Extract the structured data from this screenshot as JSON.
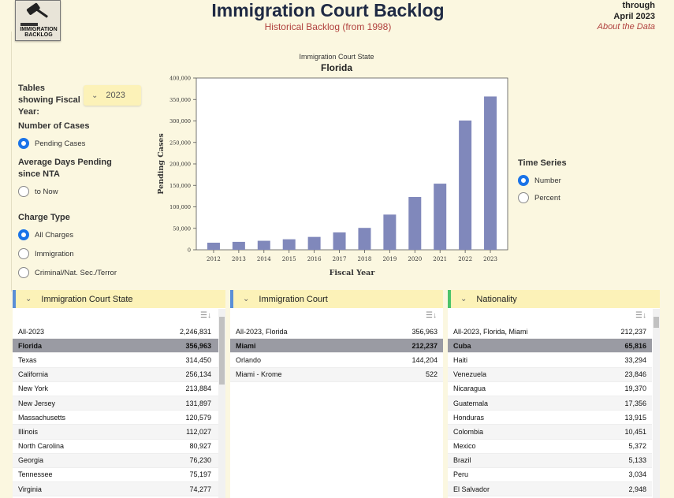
{
  "header": {
    "title": "Immigration Court Backlog",
    "subtitle": "Historical Backlog (from 1998)",
    "through_1": "through",
    "through_2": "April 2023",
    "about": "About the Data",
    "logo_text_1": "IMMIGRATION",
    "logo_text_2": "BACKLOG"
  },
  "controls": {
    "fy_label": "Tables showing Fiscal Year:",
    "fy_value": "2023",
    "num_cases_label": "Number of Cases",
    "pending_label": "Pending Cases",
    "avg_days_label": "Average Days Pending since NTA",
    "to_now_label": "to Now",
    "charge_type_label": "Charge Type",
    "charge_all": "All Charges",
    "charge_imm": "Immigration",
    "charge_crim": "Criminal/Nat. Sec./Terror",
    "time_series_label": "Time Series",
    "ts_number": "Number",
    "ts_percent": "Percent"
  },
  "chart_caption": "Immigration Court State",
  "chart_state": "Florida",
  "chart_data": {
    "type": "bar",
    "categories": [
      "2012",
      "2013",
      "2014",
      "2015",
      "2016",
      "2017",
      "2018",
      "2019",
      "2020",
      "2021",
      "2022",
      "2023"
    ],
    "values": [
      16500,
      18500,
      21000,
      24500,
      30000,
      40500,
      51000,
      82000,
      123000,
      154000,
      301000,
      357000
    ],
    "xlabel": "Fiscal Year",
    "ylabel": "Pending Cases",
    "ylim": [
      0,
      400000
    ],
    "yticks": [
      "0",
      "50,000",
      "100,000",
      "150,000",
      "200,000",
      "250,000",
      "300,000",
      "350,000",
      "400,000"
    ],
    "bar_color": "#8088bb",
    "grid": false
  },
  "panels": {
    "state": {
      "title": "Immigration Court State",
      "rows": [
        {
          "k": "All-2023",
          "v": "2,246,831"
        },
        {
          "k": "Florida",
          "v": "356,963"
        },
        {
          "k": "Texas",
          "v": "314,450"
        },
        {
          "k": "California",
          "v": "256,134"
        },
        {
          "k": "New York",
          "v": "213,884"
        },
        {
          "k": "New Jersey",
          "v": "131,897"
        },
        {
          "k": "Massachusetts",
          "v": "120,579"
        },
        {
          "k": "Illinois",
          "v": "112,027"
        },
        {
          "k": "North Carolina",
          "v": "80,927"
        },
        {
          "k": "Georgia",
          "v": "76,230"
        },
        {
          "k": "Tennessee",
          "v": "75,197"
        },
        {
          "k": "Virginia",
          "v": "74,277"
        }
      ]
    },
    "court": {
      "title": "Immigration Court",
      "rows": [
        {
          "k": "All-2023, Florida",
          "v": "356,963"
        },
        {
          "k": "Miami",
          "v": "212,237"
        },
        {
          "k": "Orlando",
          "v": "144,204"
        },
        {
          "k": "Miami - Krome",
          "v": "522"
        }
      ]
    },
    "nationality": {
      "title": "Nationality",
      "rows": [
        {
          "k": "All-2023, Florida, Miami",
          "v": "212,237"
        },
        {
          "k": "Cuba",
          "v": "65,816"
        },
        {
          "k": "Haiti",
          "v": "33,294"
        },
        {
          "k": "Venezuela",
          "v": "23,846"
        },
        {
          "k": "Nicaragua",
          "v": "19,370"
        },
        {
          "k": "Guatemala",
          "v": "17,356"
        },
        {
          "k": "Honduras",
          "v": "13,915"
        },
        {
          "k": "Colombia",
          "v": "10,451"
        },
        {
          "k": "Mexico",
          "v": "5,372"
        },
        {
          "k": "Brazil",
          "v": "5,133"
        },
        {
          "k": "Peru",
          "v": "3,034"
        },
        {
          "k": "El Salvador",
          "v": "2,948"
        }
      ]
    }
  },
  "icons": {
    "logo": "gavel-logo",
    "chevron": "chevron-down-icon",
    "sort": "sort-icon"
  }
}
